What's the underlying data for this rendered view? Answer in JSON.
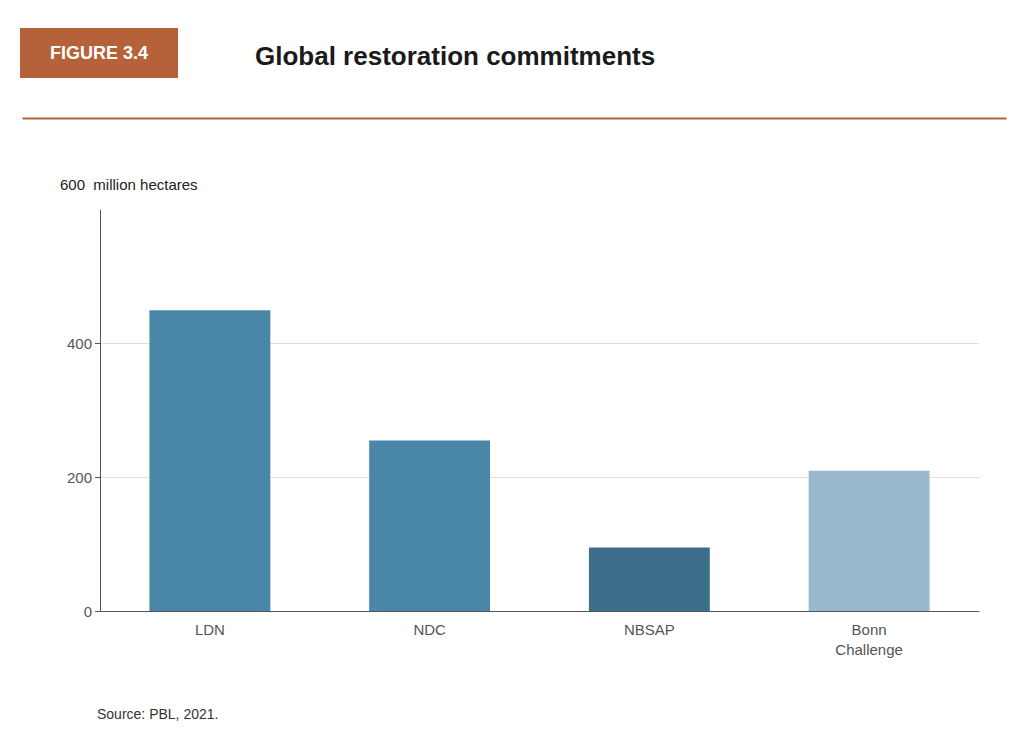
{
  "chart_data": {
    "type": "bar",
    "title": "Global restoration commitments",
    "ylabel": "600  million hectares",
    "annotations": [
      "FIGURE 3.4",
      "Source: PBL, 2021."
    ],
    "categories": [
      "LDN",
      "NDC",
      "NBSAP",
      "Bonn\nChallenge"
    ],
    "values": [
      450,
      255,
      95,
      210
    ],
    "colors": [
      "#4a86a8",
      "#4a86a8",
      "#3d6e8a",
      "#9ab8cc"
    ],
    "ylim": [
      0,
      600
    ],
    "yticks": [
      0,
      200,
      400
    ],
    "grid": true
  }
}
